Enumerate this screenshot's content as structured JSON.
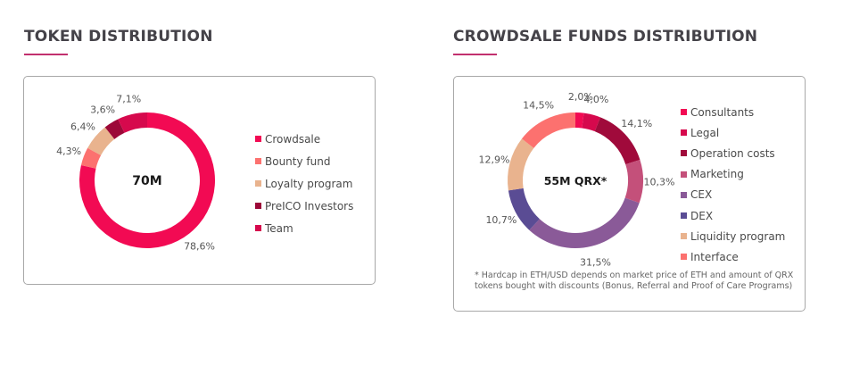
{
  "sections": {
    "token": {
      "title": "TOKEN DISTRIBUTION",
      "center_label": "70M"
    },
    "crowdsale": {
      "title": "CROWDSALE FUNDS DISTRIBUTION",
      "center_label": "55M QRX*",
      "footnote_line1": "* Hardcap in ETH/USD depends on market price of ETH and amount of QRX",
      "footnote_line2": "tokens bought with discounts (Bonus, Referral and Proof of Care Programs)"
    }
  },
  "chart_data": [
    {
      "type": "pie",
      "variant": "donut",
      "title": "TOKEN DISTRIBUTION",
      "center_text": "70M",
      "start": "12 o'clock, clockwise",
      "legend_position": "right",
      "slices": [
        {
          "label": "Crowdsale",
          "value": 78.6,
          "value_label": "78,6%",
          "color": "#f20a53"
        },
        {
          "label": "Bounty fund",
          "value": 4.3,
          "value_label": "4,3%",
          "color": "#fc716f"
        },
        {
          "label": "Loyalty program",
          "value": 6.4,
          "value_label": "6,4%",
          "color": "#e9b38e"
        },
        {
          "label": "PreICO Investors",
          "value": 3.6,
          "value_label": "3,6%",
          "color": "#9c0838"
        },
        {
          "label": "Team",
          "value": 7.1,
          "value_label": "7,1%",
          "color": "#d6094d"
        }
      ],
      "draw_order": [
        "Crowdsale",
        "Bounty fund",
        "Loyalty program",
        "PreICO Investors",
        "Team"
      ]
    },
    {
      "type": "pie",
      "variant": "donut",
      "title": "CROWDSALE FUNDS DISTRIBUTION",
      "center_text": "55M QRX*",
      "start": "12 o'clock, clockwise",
      "legend_position": "right",
      "slices": [
        {
          "label": "Consultants",
          "value": 2.0,
          "value_label": "2,0%",
          "color": "#f20a53"
        },
        {
          "label": "Legal",
          "value": 4.0,
          "value_label": "4,0%",
          "color": "#d6094d"
        },
        {
          "label": "Operation costs",
          "value": 14.1,
          "value_label": "14,1%",
          "color": "#a00a3b"
        },
        {
          "label": "Marketing",
          "value": 10.3,
          "value_label": "10,3%",
          "color": "#c4507a"
        },
        {
          "label": "CEX",
          "value": 31.5,
          "value_label": "31,5%",
          "color": "#8a5a98"
        },
        {
          "label": "DEX",
          "value": 10.7,
          "value_label": "10,7%",
          "color": "#5a4c94"
        },
        {
          "label": "Liquidity program",
          "value": 12.9,
          "value_label": "12,9%",
          "color": "#e9b38e"
        },
        {
          "label": "Interface",
          "value": 14.5,
          "value_label": "14,5%",
          "color": "#fc716f"
        }
      ]
    }
  ]
}
